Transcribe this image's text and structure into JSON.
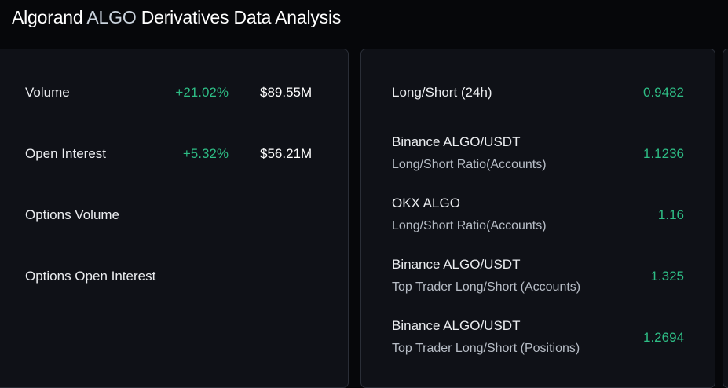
{
  "header": {
    "title_prefix": "Algorand ",
    "title_accent": "ALGO",
    "title_suffix": " Derivatives Data Analysis"
  },
  "left_panel": {
    "rows": [
      {
        "label": "Volume",
        "change": "+21.02%",
        "value": "$89.55M"
      },
      {
        "label": "Open Interest",
        "change": "+5.32%",
        "value": "$56.21M"
      },
      {
        "label": "Options Volume",
        "change": "",
        "value": ""
      },
      {
        "label": "Options Open Interest",
        "change": "",
        "value": ""
      }
    ]
  },
  "right_panel": {
    "rows": [
      {
        "title": "Long/Short (24h)",
        "subtitle": "",
        "value": "0.9482"
      },
      {
        "title": "Binance ALGO/USDT",
        "subtitle": "Long/Short Ratio(Accounts)",
        "value": "1.1236"
      },
      {
        "title": "OKX ALGO",
        "subtitle": "Long/Short Ratio(Accounts)",
        "value": "1.16"
      },
      {
        "title": "Binance ALGO/USDT",
        "subtitle": "Top Trader Long/Short (Accounts)",
        "value": "1.325"
      },
      {
        "title": "Binance ALGO/USDT",
        "subtitle": "Top Trader Long/Short (Positions)",
        "value": "1.2694"
      }
    ]
  },
  "colors": {
    "background": "#06070a",
    "card": "#0f1117",
    "positive": "#2ebd85",
    "text": "#eaecef",
    "muted": "#b7bdc6"
  }
}
